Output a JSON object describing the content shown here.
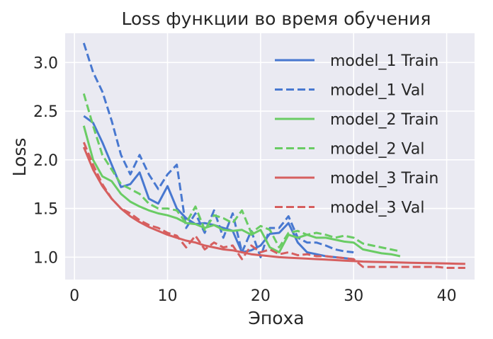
{
  "chart_data": {
    "type": "line",
    "title": "Loss функции во время обучения",
    "xlabel": "Эпоха",
    "ylabel": "Loss",
    "xlim": [
      -1,
      43
    ],
    "ylim": [
      0.77,
      3.3
    ],
    "x_ticks": [
      0,
      10,
      20,
      30,
      40
    ],
    "y_ticks": [
      1.0,
      1.5,
      2.0,
      2.5,
      3.0
    ],
    "y_tick_labels": [
      "1.0",
      "1.5",
      "2.0",
      "2.5",
      "3.0"
    ],
    "grid": true,
    "legend_position": "top-right",
    "series": [
      {
        "name": "model_1 Train",
        "color": "#4878d0",
        "dash": "solid",
        "x": [
          1,
          2,
          3,
          4,
          5,
          6,
          7,
          8,
          9,
          10,
          11,
          12,
          13,
          14,
          15,
          16,
          17,
          18,
          19,
          20,
          21,
          22,
          23,
          24,
          25,
          26,
          27,
          28,
          29,
          30
        ],
        "y": [
          2.45,
          2.38,
          2.18,
          1.95,
          1.72,
          1.75,
          1.87,
          1.6,
          1.55,
          1.73,
          1.5,
          1.4,
          1.34,
          1.35,
          1.33,
          1.3,
          1.27,
          1.05,
          1.07,
          1.12,
          1.24,
          1.25,
          1.35,
          1.15,
          1.05,
          1.03,
          1.01,
          1.0,
          0.99,
          0.98
        ]
      },
      {
        "name": "model_1 Val",
        "color": "#4878d0",
        "dash": "dashed",
        "x": [
          1,
          2,
          3,
          4,
          5,
          6,
          7,
          8,
          9,
          10,
          11,
          12,
          13,
          14,
          15,
          16,
          17,
          18,
          19,
          20,
          21,
          22,
          23,
          24,
          25,
          26,
          27,
          28,
          29,
          30
        ],
        "y": [
          3.2,
          2.9,
          2.7,
          2.4,
          2.05,
          1.85,
          2.05,
          1.85,
          1.7,
          1.85,
          1.95,
          1.3,
          1.45,
          1.25,
          1.48,
          1.2,
          1.45,
          1.05,
          1.27,
          1.0,
          1.3,
          1.3,
          1.42,
          1.2,
          1.15,
          1.15,
          1.12,
          1.08,
          1.06,
          1.05
        ]
      },
      {
        "name": "model_2 Train",
        "color": "#6acc64",
        "dash": "solid",
        "x": [
          1,
          2,
          3,
          4,
          5,
          6,
          7,
          8,
          9,
          10,
          11,
          12,
          13,
          14,
          15,
          16,
          17,
          18,
          19,
          20,
          21,
          22,
          23,
          24,
          25,
          26,
          27,
          28,
          29,
          30,
          31,
          32,
          33,
          34,
          35
        ],
        "y": [
          2.35,
          2.0,
          1.83,
          1.78,
          1.65,
          1.57,
          1.52,
          1.48,
          1.45,
          1.43,
          1.4,
          1.35,
          1.34,
          1.3,
          1.33,
          1.28,
          1.27,
          1.28,
          1.23,
          1.28,
          1.1,
          1.05,
          1.23,
          1.2,
          1.23,
          1.2,
          1.2,
          1.18,
          1.16,
          1.15,
          1.08,
          1.06,
          1.04,
          1.03,
          1.01
        ]
      },
      {
        "name": "model_2 Val",
        "color": "#6acc64",
        "dash": "dashed",
        "x": [
          1,
          2,
          3,
          4,
          5,
          6,
          7,
          8,
          9,
          10,
          11,
          12,
          13,
          14,
          15,
          16,
          17,
          18,
          19,
          20,
          21,
          22,
          23,
          24,
          25,
          26,
          27,
          28,
          29,
          30,
          31,
          32,
          33,
          34,
          35
        ],
        "y": [
          2.68,
          2.35,
          2.05,
          1.9,
          1.75,
          1.7,
          1.65,
          1.55,
          1.5,
          1.5,
          1.48,
          1.35,
          1.52,
          1.28,
          1.43,
          1.4,
          1.35,
          1.48,
          1.25,
          1.32,
          1.28,
          1.1,
          1.25,
          1.27,
          1.23,
          1.25,
          1.23,
          1.2,
          1.22,
          1.2,
          1.14,
          1.12,
          1.1,
          1.08,
          1.06
        ]
      },
      {
        "name": "model_3 Train",
        "color": "#d65f5f",
        "dash": "solid",
        "x": [
          1,
          2,
          3,
          4,
          5,
          6,
          7,
          8,
          9,
          10,
          11,
          12,
          13,
          14,
          15,
          16,
          17,
          18,
          19,
          20,
          21,
          22,
          23,
          24,
          25,
          26,
          27,
          28,
          29,
          30,
          31,
          32,
          33,
          34,
          35,
          36,
          37,
          38,
          39,
          40,
          41,
          42
        ],
        "y": [
          2.13,
          1.9,
          1.73,
          1.6,
          1.5,
          1.42,
          1.36,
          1.31,
          1.27,
          1.23,
          1.2,
          1.17,
          1.15,
          1.12,
          1.1,
          1.08,
          1.07,
          1.05,
          1.03,
          1.02,
          1.01,
          1.0,
          0.995,
          0.99,
          0.985,
          0.98,
          0.975,
          0.97,
          0.965,
          0.96,
          0.955,
          0.952,
          0.95,
          0.948,
          0.945,
          0.943,
          0.941,
          0.939,
          0.937,
          0.935,
          0.933,
          0.931
        ]
      },
      {
        "name": "model_3 Val",
        "color": "#d65f5f",
        "dash": "dashed",
        "x": [
          1,
          2,
          3,
          4,
          5,
          6,
          7,
          8,
          9,
          10,
          11,
          12,
          13,
          14,
          15,
          16,
          17,
          18,
          19,
          20,
          21,
          22,
          23,
          24,
          25,
          26,
          27,
          28,
          29,
          30,
          31,
          32,
          33,
          34,
          35,
          36,
          37,
          38,
          39,
          40,
          41,
          42
        ],
        "y": [
          2.18,
          1.95,
          1.75,
          1.6,
          1.5,
          1.45,
          1.38,
          1.33,
          1.3,
          1.25,
          1.22,
          1.1,
          1.22,
          1.08,
          1.15,
          1.1,
          1.12,
          0.98,
          1.12,
          1.05,
          1.08,
          1.03,
          1.05,
          1.02,
          1.03,
          1.01,
          1.01,
          1.0,
          0.99,
          0.98,
          0.9,
          0.9,
          0.9,
          0.9,
          0.9,
          0.9,
          0.9,
          0.9,
          0.9,
          0.89,
          0.89,
          0.89
        ]
      }
    ]
  }
}
